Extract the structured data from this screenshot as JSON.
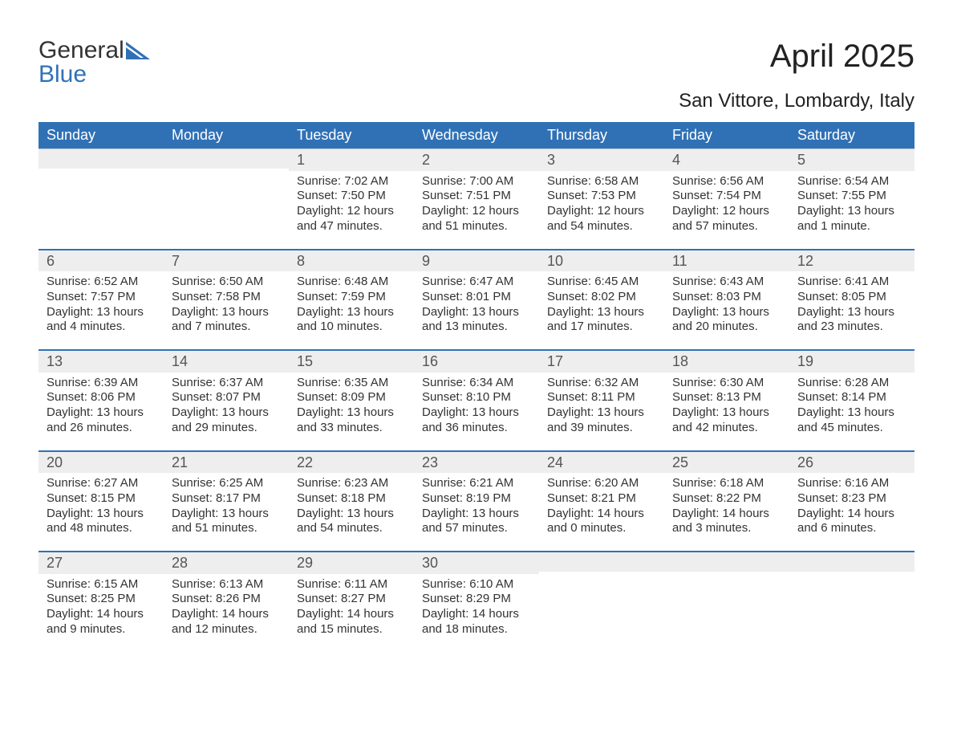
{
  "logo": {
    "line1": "General",
    "line2": "Blue",
    "color1": "#333333",
    "color2": "#3071b6",
    "shape_color": "#3071b6"
  },
  "title": "April 2025",
  "subtitle": "San Vittore, Lombardy, Italy",
  "header_bg": "#3071b6",
  "header_text_color": "#ffffff",
  "band_bg": "#eeeeee",
  "row_border_color": "#cccccc",
  "topbar_color": "#3071b6",
  "text_color": "#333333",
  "weekdays": [
    "Sunday",
    "Monday",
    "Tuesday",
    "Wednesday",
    "Thursday",
    "Friday",
    "Saturday"
  ],
  "weeks": [
    [
      null,
      null,
      {
        "n": "1",
        "sunrise": "Sunrise: 7:02 AM",
        "sunset": "Sunset: 7:50 PM",
        "d1": "Daylight: 12 hours",
        "d2": "and 47 minutes."
      },
      {
        "n": "2",
        "sunrise": "Sunrise: 7:00 AM",
        "sunset": "Sunset: 7:51 PM",
        "d1": "Daylight: 12 hours",
        "d2": "and 51 minutes."
      },
      {
        "n": "3",
        "sunrise": "Sunrise: 6:58 AM",
        "sunset": "Sunset: 7:53 PM",
        "d1": "Daylight: 12 hours",
        "d2": "and 54 minutes."
      },
      {
        "n": "4",
        "sunrise": "Sunrise: 6:56 AM",
        "sunset": "Sunset: 7:54 PM",
        "d1": "Daylight: 12 hours",
        "d2": "and 57 minutes."
      },
      {
        "n": "5",
        "sunrise": "Sunrise: 6:54 AM",
        "sunset": "Sunset: 7:55 PM",
        "d1": "Daylight: 13 hours",
        "d2": "and 1 minute."
      }
    ],
    [
      {
        "n": "6",
        "sunrise": "Sunrise: 6:52 AM",
        "sunset": "Sunset: 7:57 PM",
        "d1": "Daylight: 13 hours",
        "d2": "and 4 minutes."
      },
      {
        "n": "7",
        "sunrise": "Sunrise: 6:50 AM",
        "sunset": "Sunset: 7:58 PM",
        "d1": "Daylight: 13 hours",
        "d2": "and 7 minutes."
      },
      {
        "n": "8",
        "sunrise": "Sunrise: 6:48 AM",
        "sunset": "Sunset: 7:59 PM",
        "d1": "Daylight: 13 hours",
        "d2": "and 10 minutes."
      },
      {
        "n": "9",
        "sunrise": "Sunrise: 6:47 AM",
        "sunset": "Sunset: 8:01 PM",
        "d1": "Daylight: 13 hours",
        "d2": "and 13 minutes."
      },
      {
        "n": "10",
        "sunrise": "Sunrise: 6:45 AM",
        "sunset": "Sunset: 8:02 PM",
        "d1": "Daylight: 13 hours",
        "d2": "and 17 minutes."
      },
      {
        "n": "11",
        "sunrise": "Sunrise: 6:43 AM",
        "sunset": "Sunset: 8:03 PM",
        "d1": "Daylight: 13 hours",
        "d2": "and 20 minutes."
      },
      {
        "n": "12",
        "sunrise": "Sunrise: 6:41 AM",
        "sunset": "Sunset: 8:05 PM",
        "d1": "Daylight: 13 hours",
        "d2": "and 23 minutes."
      }
    ],
    [
      {
        "n": "13",
        "sunrise": "Sunrise: 6:39 AM",
        "sunset": "Sunset: 8:06 PM",
        "d1": "Daylight: 13 hours",
        "d2": "and 26 minutes."
      },
      {
        "n": "14",
        "sunrise": "Sunrise: 6:37 AM",
        "sunset": "Sunset: 8:07 PM",
        "d1": "Daylight: 13 hours",
        "d2": "and 29 minutes."
      },
      {
        "n": "15",
        "sunrise": "Sunrise: 6:35 AM",
        "sunset": "Sunset: 8:09 PM",
        "d1": "Daylight: 13 hours",
        "d2": "and 33 minutes."
      },
      {
        "n": "16",
        "sunrise": "Sunrise: 6:34 AM",
        "sunset": "Sunset: 8:10 PM",
        "d1": "Daylight: 13 hours",
        "d2": "and 36 minutes."
      },
      {
        "n": "17",
        "sunrise": "Sunrise: 6:32 AM",
        "sunset": "Sunset: 8:11 PM",
        "d1": "Daylight: 13 hours",
        "d2": "and 39 minutes."
      },
      {
        "n": "18",
        "sunrise": "Sunrise: 6:30 AM",
        "sunset": "Sunset: 8:13 PM",
        "d1": "Daylight: 13 hours",
        "d2": "and 42 minutes."
      },
      {
        "n": "19",
        "sunrise": "Sunrise: 6:28 AM",
        "sunset": "Sunset: 8:14 PM",
        "d1": "Daylight: 13 hours",
        "d2": "and 45 minutes."
      }
    ],
    [
      {
        "n": "20",
        "sunrise": "Sunrise: 6:27 AM",
        "sunset": "Sunset: 8:15 PM",
        "d1": "Daylight: 13 hours",
        "d2": "and 48 minutes."
      },
      {
        "n": "21",
        "sunrise": "Sunrise: 6:25 AM",
        "sunset": "Sunset: 8:17 PM",
        "d1": "Daylight: 13 hours",
        "d2": "and 51 minutes."
      },
      {
        "n": "22",
        "sunrise": "Sunrise: 6:23 AM",
        "sunset": "Sunset: 8:18 PM",
        "d1": "Daylight: 13 hours",
        "d2": "and 54 minutes."
      },
      {
        "n": "23",
        "sunrise": "Sunrise: 6:21 AM",
        "sunset": "Sunset: 8:19 PM",
        "d1": "Daylight: 13 hours",
        "d2": "and 57 minutes."
      },
      {
        "n": "24",
        "sunrise": "Sunrise: 6:20 AM",
        "sunset": "Sunset: 8:21 PM",
        "d1": "Daylight: 14 hours",
        "d2": "and 0 minutes."
      },
      {
        "n": "25",
        "sunrise": "Sunrise: 6:18 AM",
        "sunset": "Sunset: 8:22 PM",
        "d1": "Daylight: 14 hours",
        "d2": "and 3 minutes."
      },
      {
        "n": "26",
        "sunrise": "Sunrise: 6:16 AM",
        "sunset": "Sunset: 8:23 PM",
        "d1": "Daylight: 14 hours",
        "d2": "and 6 minutes."
      }
    ],
    [
      {
        "n": "27",
        "sunrise": "Sunrise: 6:15 AM",
        "sunset": "Sunset: 8:25 PM",
        "d1": "Daylight: 14 hours",
        "d2": "and 9 minutes."
      },
      {
        "n": "28",
        "sunrise": "Sunrise: 6:13 AM",
        "sunset": "Sunset: 8:26 PM",
        "d1": "Daylight: 14 hours",
        "d2": "and 12 minutes."
      },
      {
        "n": "29",
        "sunrise": "Sunrise: 6:11 AM",
        "sunset": "Sunset: 8:27 PM",
        "d1": "Daylight: 14 hours",
        "d2": "and 15 minutes."
      },
      {
        "n": "30",
        "sunrise": "Sunrise: 6:10 AM",
        "sunset": "Sunset: 8:29 PM",
        "d1": "Daylight: 14 hours",
        "d2": "and 18 minutes."
      },
      null,
      null,
      null
    ]
  ]
}
